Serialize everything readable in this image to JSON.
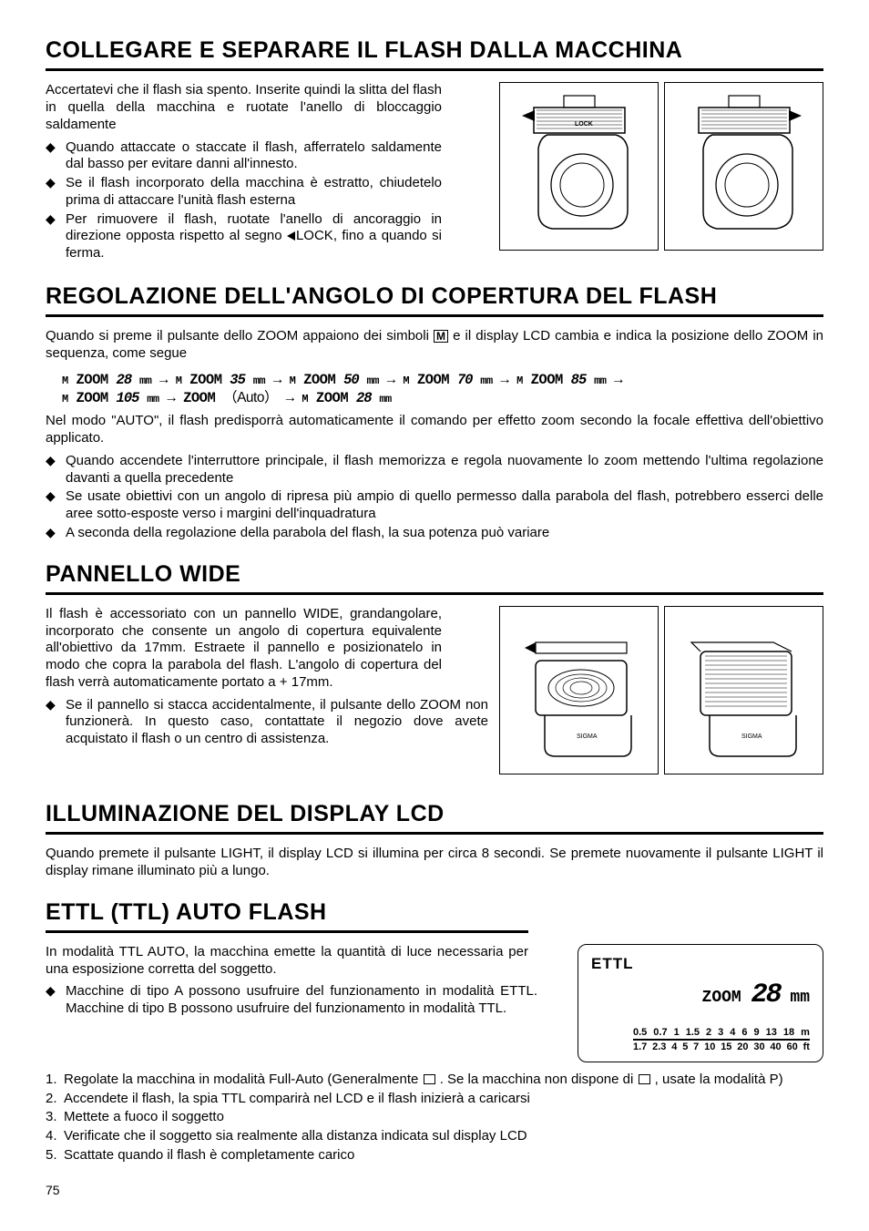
{
  "page_number": "75",
  "sections": {
    "attach": {
      "title": "COLLEGARE E SEPARARE IL FLASH DALLA MACCHINA",
      "intro": "Accertatevi che il flash sia spento. Inserite quindi la slitta del flash in quella della macchina e ruotate l'anello di bloccaggio saldamente",
      "bullets": [
        "Quando attaccate o staccate il flash, afferratelo saldamente dal basso per evitare danni all'innesto.",
        "Se il flash incorporato della macchina è estratto, chiudetelo prima di attaccare l'unità flash esterna",
        "Per rimuovere il flash, ruotate l'anello di ancoraggio in direzione opposta rispetto al segno ◀LOCK, fino a quando si ferma."
      ],
      "bullet3_prefix": "Per rimuovere il flash, ruotate l'anello di ancoraggio in direzione opposta rispetto al segno ",
      "bullet3_lock": "LOCK, fino a quando si ferma.",
      "image_alt": "two-camera-flash-mounting-diagram"
    },
    "zoom": {
      "title": "REGOLAZIONE DELL'ANGOLO DI COPERTURA DEL FLASH",
      "intro_before_m": "Quando si preme il pulsante dello ZOOM appaiono dei simboli ",
      "intro_after_m": " e il display LCD cambia e indica la posizione dello ZOOM in sequenza, come segue",
      "sequence": [
        {
          "label": "M ZOOM",
          "val": "28",
          "unit": "mm"
        },
        {
          "label": "M ZOOM",
          "val": "35",
          "unit": "mm"
        },
        {
          "label": "M ZOOM",
          "val": "50",
          "unit": "mm"
        },
        {
          "label": "M ZOOM",
          "val": "70",
          "unit": "mm"
        },
        {
          "label": "M ZOOM",
          "val": "85",
          "unit": "mm"
        },
        {
          "label": "M ZOOM",
          "val": "105",
          "unit": "mm"
        },
        {
          "label": "ZOOM",
          "val": "（Auto）",
          "unit": ""
        },
        {
          "label": "M ZOOM",
          "val": "28",
          "unit": "mm"
        }
      ],
      "after_seq": "Nel modo \"AUTO\", il flash predisporrà automaticamente il comando per effetto zoom secondo la focale effettiva dell'obiettivo applicato.",
      "bullets": [
        "Quando accendete l'interruttore principale, il flash memorizza e regola nuovamente lo zoom mettendo l'ultima regolazione davanti a quella precedente",
        "Se usate obiettivi con un angolo di ripresa più ampio di quello permesso dalla parabola del flash, potrebbero esserci delle aree sotto-esposte verso i margini dell'inquadratura",
        "A seconda della regolazione della parabola del flash, la sua potenza può variare"
      ]
    },
    "wide": {
      "title": "PANNELLO WIDE",
      "intro": "Il flash è accessoriato con un pannello WIDE, grandangolare, incorporato che consente un angolo di copertura equivalente all'obiettivo da 17mm. Estraete il pannello e posizionatelo in modo che copra la parabola del flash. L'angolo di copertura del flash verrà automaticamente portato a + 17mm.",
      "bullet": "Se il pannello si stacca accidentalmente, il pulsante dello ZOOM non funzionerà. In questo caso, contattate il negozio dove avete acquistato il flash o un centro di assistenza.",
      "image_alt": "two-flash-wide-panel-diagram"
    },
    "lcd": {
      "title": "ILLUMINAZIONE DEL DISPLAY LCD",
      "text": "Quando premete il pulsante LIGHT, il display LCD si illumina per circa 8 secondi. Se premete nuovamente il pulsante LIGHT il display rimane illuminato più a lungo."
    },
    "ettl": {
      "title": "ETTL (TTL) AUTO FLASH",
      "intro": "In modalità TTL AUTO, la macchina emette la quantità di luce necessaria per una esposizione corretta del soggetto.",
      "bullets": [
        "Macchine di tipo A possono usufruire del funzionamento in modalità ETTL. Macchine di tipo B possono usufruire del funzionamento in modalità TTL."
      ],
      "steps": {
        "s1a": "Regolate la macchina in modalità Full-Auto (Generalmente ",
        "s1b": " . Se la macchina non dispone di ",
        "s1c": " , usate la modalità P)",
        "s2": "Accendete il flash, la spia TTL comparirà nel LCD e il flash inizierà a caricarsi",
        "s3": "Mettete a fuoco il soggetto",
        "s4": "Verificate che il soggetto sia realmente alla distanza indicata sul display LCD",
        "s5": "Scattate quando il flash è completamente carico"
      },
      "lcd_display": {
        "ettl_label": "ETTL",
        "zoom_label": "ZOOM",
        "zoom_value": "28",
        "zoom_unit": "mm",
        "scale_top": [
          "0.5",
          "0.7",
          "1",
          "1.5",
          "2",
          "3",
          "4",
          "6",
          "9",
          "13",
          "18",
          "m"
        ],
        "scale_bottom": [
          "1.7",
          "2.3",
          "4",
          "5",
          "7",
          "10",
          "15",
          "20",
          "30",
          "40",
          "60",
          "ft"
        ]
      }
    }
  }
}
